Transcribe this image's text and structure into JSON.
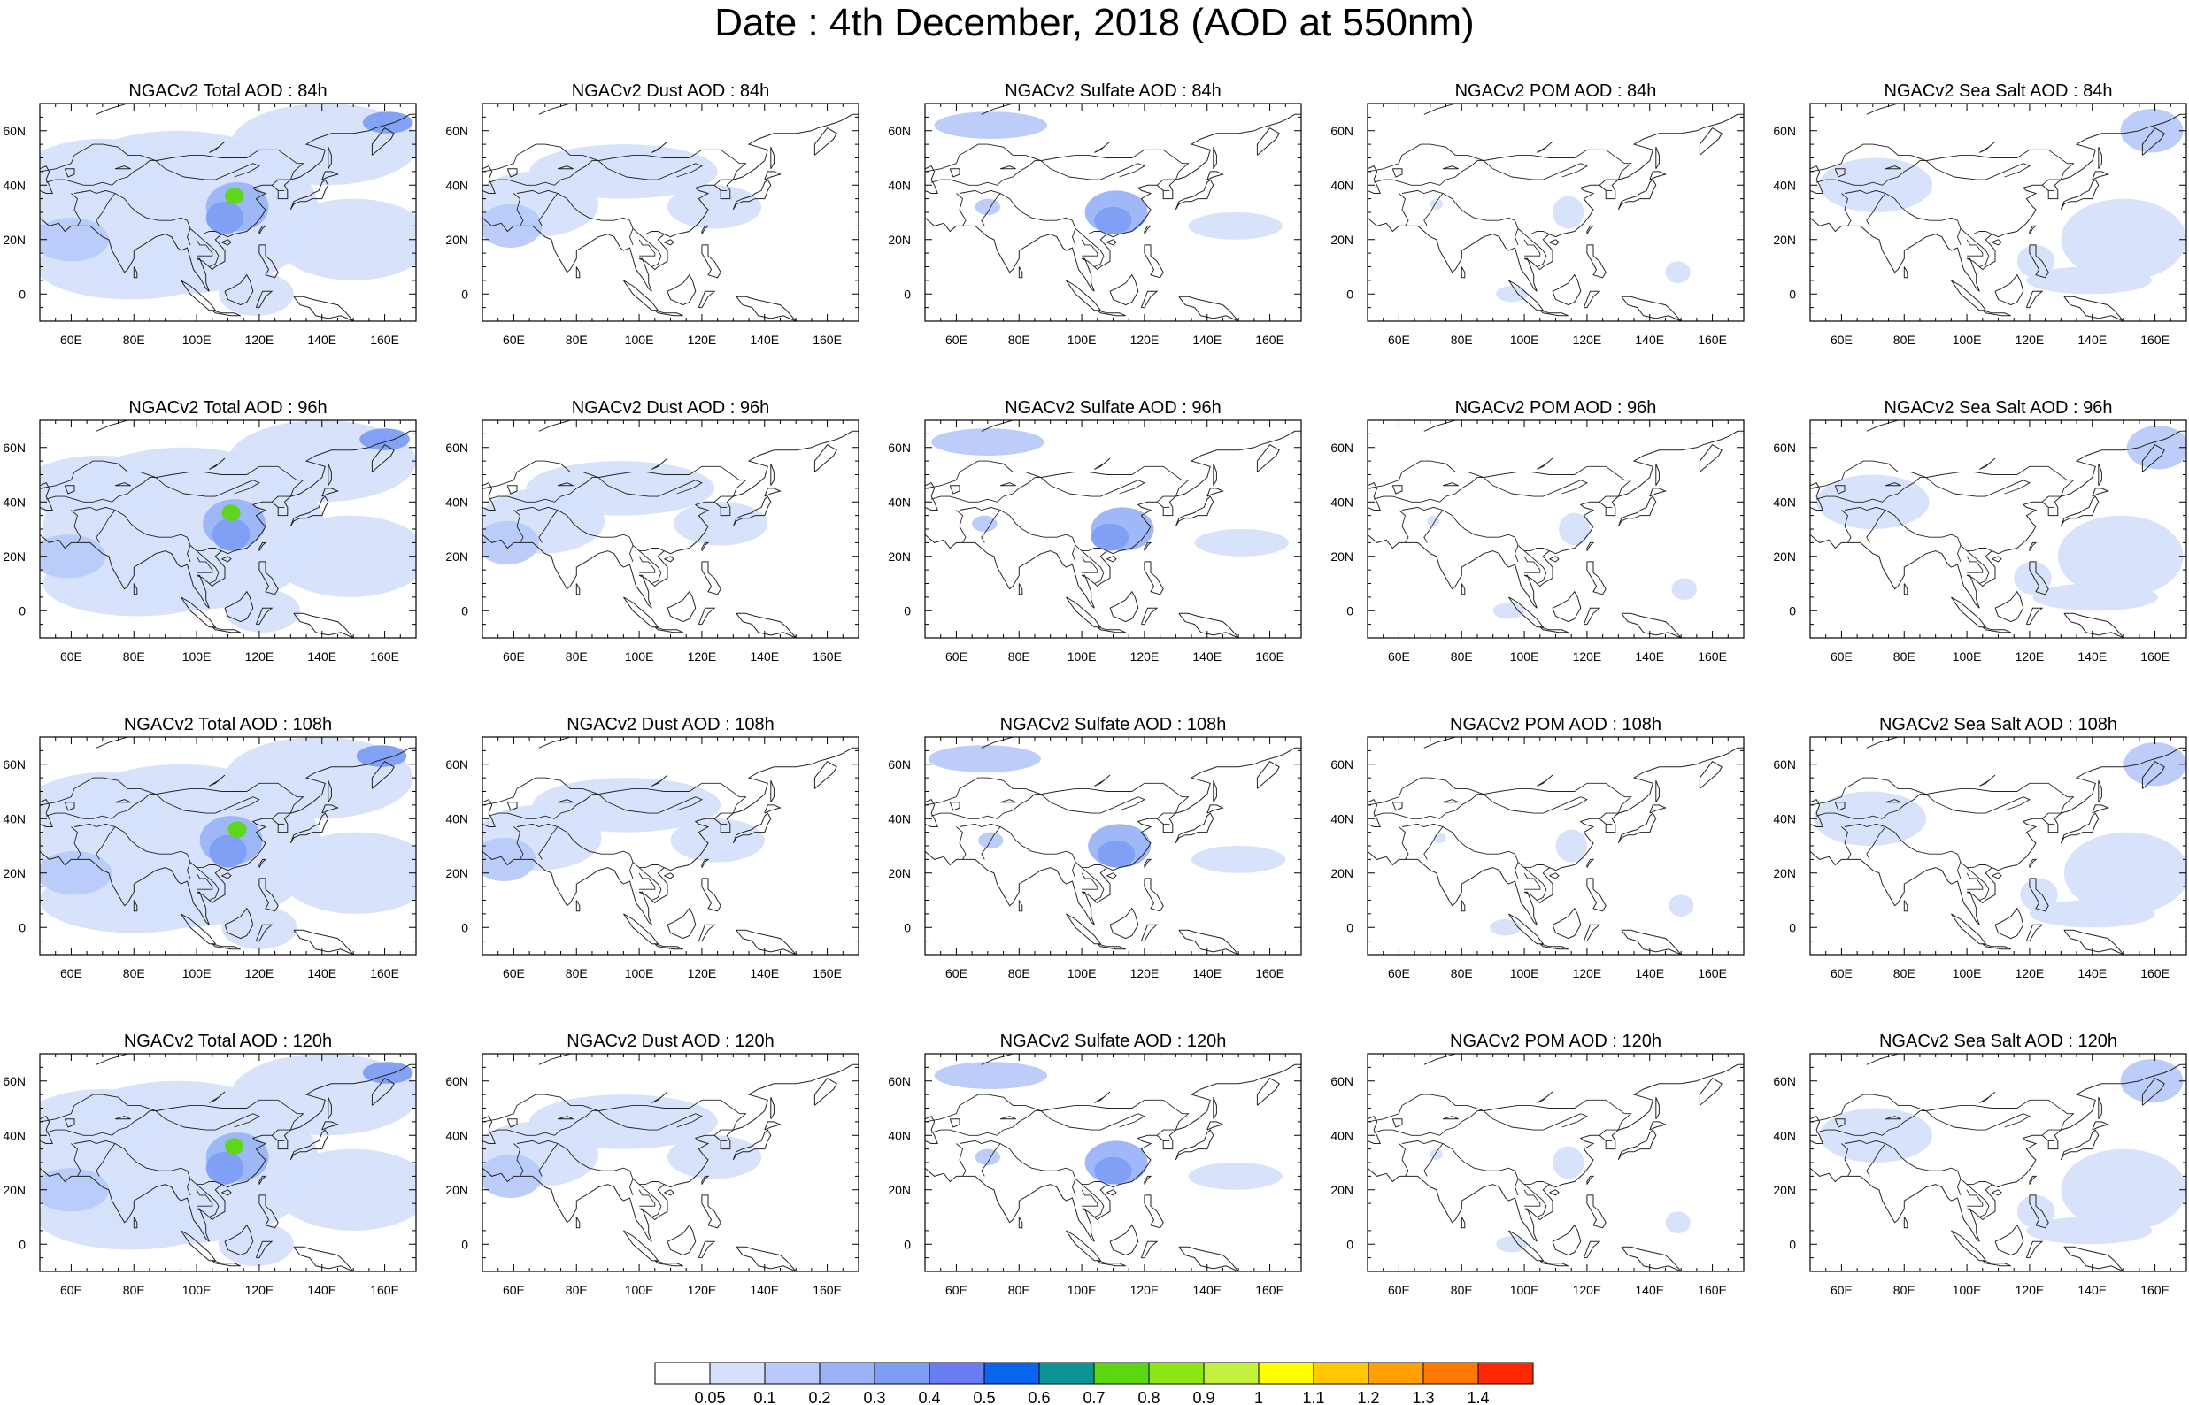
{
  "title": "Date : 4th December, 2018 (AOD at 550nm)",
  "panel_titles": [
    [
      "NGACv2 Total AOD : 84h",
      "NGACv2 Dust AOD : 84h",
      "NGACv2 Sulfate AOD : 84h",
      "NGACv2 POM AOD : 84h",
      "NGACv2 Sea Salt AOD : 84h"
    ],
    [
      "NGACv2 Total AOD : 96h",
      "NGACv2 Dust AOD : 96h",
      "NGACv2 Sulfate AOD : 96h",
      "NGACv2 POM AOD : 96h",
      "NGACv2 Sea Salt AOD : 96h"
    ],
    [
      "NGACv2 Total AOD : 108h",
      "NGACv2 Dust AOD : 108h",
      "NGACv2 Sulfate AOD : 108h",
      "NGACv2 POM AOD : 108h",
      "NGACv2 Sea Salt AOD : 108h"
    ],
    [
      "NGACv2 Total AOD : 120h",
      "NGACv2 Dust AOD : 120h",
      "NGACv2 Sulfate AOD : 120h",
      "NGACv2 POM AOD : 120h",
      "NGACv2 Sea Salt  AOD : 120h"
    ]
  ],
  "species": [
    "Total",
    "Dust",
    "Sulfate",
    "POM",
    "Sea Salt"
  ],
  "forecast_hours": [
    "84h",
    "96h",
    "108h",
    "120h"
  ],
  "map_extent": {
    "lon": [
      50,
      170
    ],
    "lat": [
      -10,
      70
    ]
  },
  "lon_ticks": [
    60,
    80,
    100,
    120,
    140,
    160
  ],
  "lon_tick_labels": [
    "60E",
    "80E",
    "100E",
    "120E",
    "140E",
    "160E"
  ],
  "lat_ticks": [
    60,
    40,
    20,
    0
  ],
  "lat_tick_labels": [
    "60N",
    "40N",
    "20N",
    "0"
  ],
  "colorbar": {
    "colors": [
      "#ffffff",
      "#d6e0fb",
      "#b8cafa",
      "#9bb4f7",
      "#7e9ef5",
      "#6a7cf2",
      "#0a64f0",
      "#0b9496",
      "#5ad70f",
      "#8fe614",
      "#c3f03c",
      "#ffff00",
      "#ffc800",
      "#ffa000",
      "#ff7800",
      "#ff2800"
    ],
    "labels": [
      "0.05",
      "0.1",
      "0.2",
      "0.3",
      "0.4",
      "0.5",
      "0.6",
      "0.7",
      "0.8",
      "0.9",
      "1",
      "1.1",
      "1.2",
      "1.3",
      "1.4"
    ]
  }
}
